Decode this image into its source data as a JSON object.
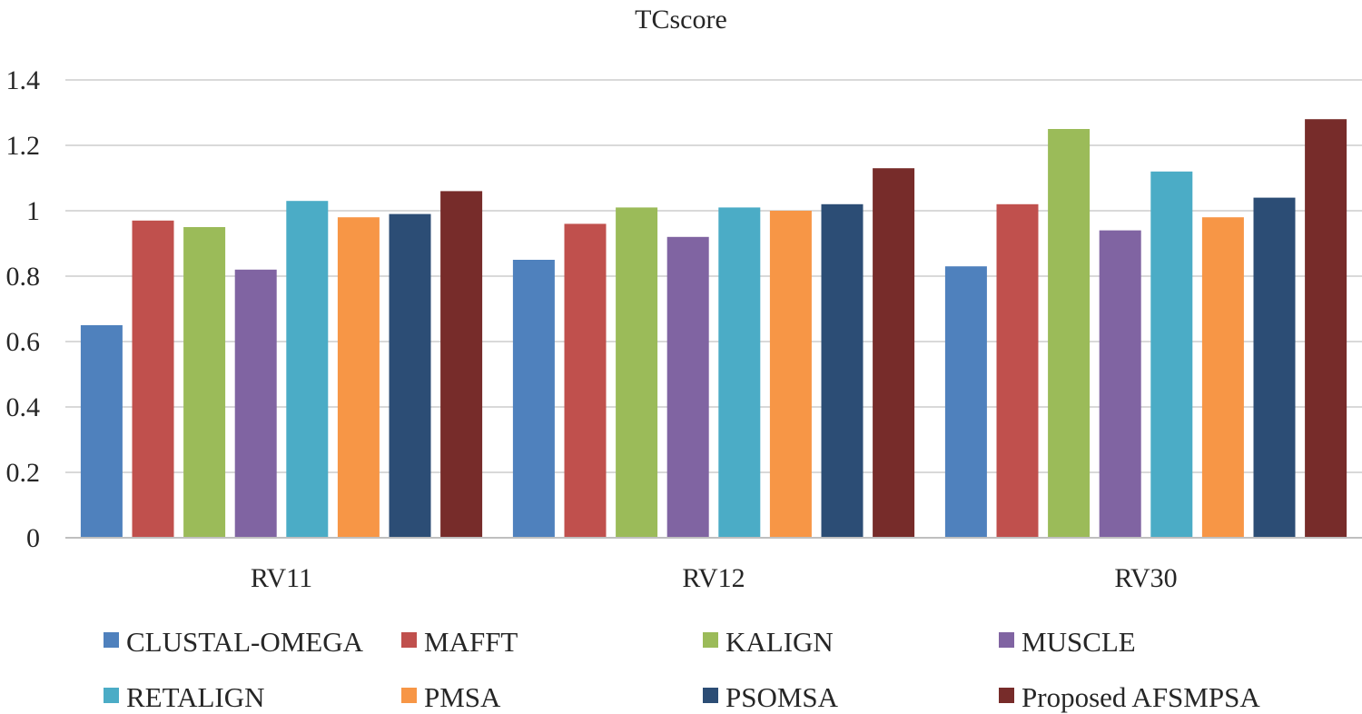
{
  "chart_data": {
    "type": "bar",
    "title": "TCscore",
    "xlabel": "",
    "ylabel": "",
    "ylim": [
      0,
      1.4
    ],
    "yticks": [
      "0",
      "0.2",
      "0.4",
      "0.6",
      "0.8",
      "1",
      "1.2",
      "1.4"
    ],
    "grid": true,
    "legend_position": "bottom",
    "categories": [
      "RV11",
      "RV12",
      "RV30"
    ],
    "series": [
      {
        "name": "CLUSTAL-OMEGA",
        "color": "#4f81bd",
        "values": [
          0.65,
          0.85,
          0.83
        ]
      },
      {
        "name": "MAFFT",
        "color": "#c0504d",
        "values": [
          0.97,
          0.96,
          1.02
        ]
      },
      {
        "name": "KALIGN",
        "color": "#9bbb59",
        "values": [
          0.95,
          1.01,
          1.25
        ]
      },
      {
        "name": "MUSCLE",
        "color": "#8064a2",
        "values": [
          0.82,
          0.92,
          0.94
        ]
      },
      {
        "name": "RETALIGN",
        "color": "#4bacc6",
        "values": [
          1.03,
          1.01,
          1.12
        ]
      },
      {
        "name": "PMSA",
        "color": "#f79646",
        "values": [
          0.98,
          1.0,
          0.98
        ]
      },
      {
        "name": "PSOMSA",
        "color": "#2c4d75",
        "values": [
          0.99,
          1.02,
          1.04
        ]
      },
      {
        "name": "Proposed AFSMPSA",
        "color": "#772c2a",
        "values": [
          1.06,
          1.13,
          1.28
        ]
      }
    ]
  }
}
